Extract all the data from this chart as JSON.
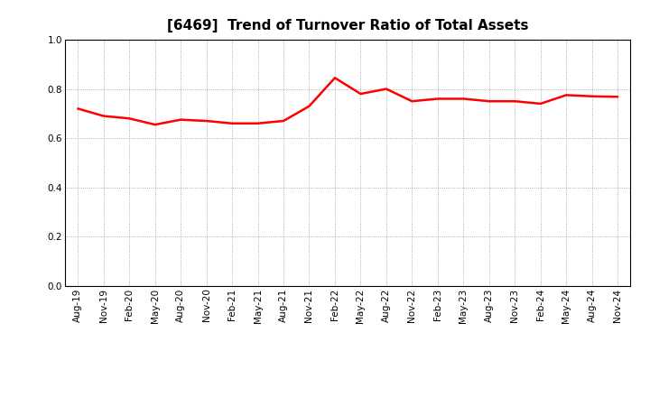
{
  "title": "[6469]  Trend of Turnover Ratio of Total Assets",
  "x_labels": [
    "Aug-19",
    "Nov-19",
    "Feb-20",
    "May-20",
    "Aug-20",
    "Nov-20",
    "Feb-21",
    "May-21",
    "Aug-21",
    "Nov-21",
    "Feb-22",
    "May-22",
    "Aug-22",
    "Nov-22",
    "Feb-23",
    "May-23",
    "Aug-23",
    "Nov-23",
    "Feb-24",
    "May-24",
    "Aug-24",
    "Nov-24"
  ],
  "values": [
    0.72,
    0.69,
    0.68,
    0.655,
    0.675,
    0.67,
    0.66,
    0.66,
    0.67,
    0.73,
    0.845,
    0.78,
    0.8,
    0.75,
    0.76,
    0.76,
    0.75,
    0.75,
    0.74,
    0.775,
    0.77,
    0.768
  ],
  "line_color": "#ff0000",
  "line_width": 1.8,
  "ylim": [
    0.0,
    1.0
  ],
  "yticks": [
    0.0,
    0.2,
    0.4,
    0.6,
    0.8,
    1.0
  ],
  "background_color": "#ffffff",
  "grid_color": "#999999",
  "title_fontsize": 11,
  "tick_fontsize": 7.5
}
